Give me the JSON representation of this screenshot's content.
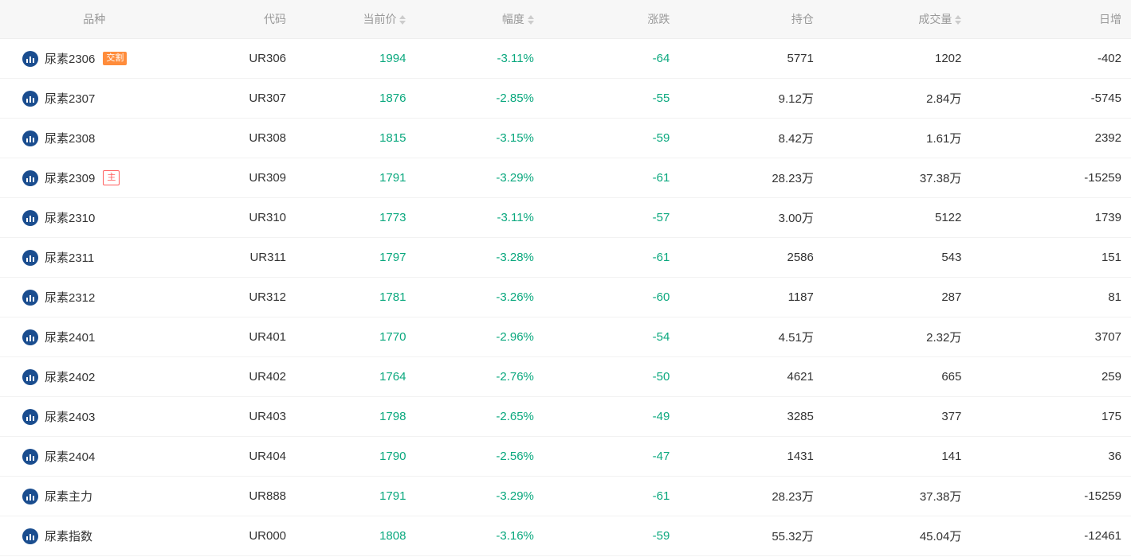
{
  "colors": {
    "header_bg": "#f7f7f7",
    "header_text": "#999999",
    "text": "#333333",
    "neg": "#0aa87e",
    "border": "#f2f2f2",
    "icon_bg": "#1a4d8f",
    "badge_delivery_bg": "#ff8c3b",
    "badge_main_border": "#ff5b5b",
    "sort_arrow": "#cccccc"
  },
  "columns": [
    {
      "key": "name",
      "label": "品种",
      "align": "center",
      "sortable": false
    },
    {
      "key": "code",
      "label": "代码",
      "align": "right",
      "sortable": false
    },
    {
      "key": "price",
      "label": "当前价",
      "align": "right",
      "sortable": true
    },
    {
      "key": "amplitude",
      "label": "幅度",
      "align": "right",
      "sortable": true
    },
    {
      "key": "change",
      "label": "涨跌",
      "align": "right",
      "sortable": false
    },
    {
      "key": "position",
      "label": "持仓",
      "align": "right",
      "sortable": false
    },
    {
      "key": "volume",
      "label": "成交量",
      "align": "right",
      "sortable": true
    },
    {
      "key": "dayinc",
      "label": "日增",
      "align": "right",
      "sortable": false
    }
  ],
  "badges": {
    "delivery": "交割",
    "main": "主"
  },
  "rows": [
    {
      "name": "尿素2306",
      "badge": "delivery",
      "code": "UR306",
      "price": "1994",
      "amplitude": "-3.11%",
      "change": "-64",
      "position": "5771",
      "volume": "1202",
      "dayinc": "-402"
    },
    {
      "name": "尿素2307",
      "badge": null,
      "code": "UR307",
      "price": "1876",
      "amplitude": "-2.85%",
      "change": "-55",
      "position": "9.12万",
      "volume": "2.84万",
      "dayinc": "-5745"
    },
    {
      "name": "尿素2308",
      "badge": null,
      "code": "UR308",
      "price": "1815",
      "amplitude": "-3.15%",
      "change": "-59",
      "position": "8.42万",
      "volume": "1.61万",
      "dayinc": "2392"
    },
    {
      "name": "尿素2309",
      "badge": "main",
      "code": "UR309",
      "price": "1791",
      "amplitude": "-3.29%",
      "change": "-61",
      "position": "28.23万",
      "volume": "37.38万",
      "dayinc": "-15259"
    },
    {
      "name": "尿素2310",
      "badge": null,
      "code": "UR310",
      "price": "1773",
      "amplitude": "-3.11%",
      "change": "-57",
      "position": "3.00万",
      "volume": "5122",
      "dayinc": "1739"
    },
    {
      "name": "尿素2311",
      "badge": null,
      "code": "UR311",
      "price": "1797",
      "amplitude": "-3.28%",
      "change": "-61",
      "position": "2586",
      "volume": "543",
      "dayinc": "151"
    },
    {
      "name": "尿素2312",
      "badge": null,
      "code": "UR312",
      "price": "1781",
      "amplitude": "-3.26%",
      "change": "-60",
      "position": "1187",
      "volume": "287",
      "dayinc": "81"
    },
    {
      "name": "尿素2401",
      "badge": null,
      "code": "UR401",
      "price": "1770",
      "amplitude": "-2.96%",
      "change": "-54",
      "position": "4.51万",
      "volume": "2.32万",
      "dayinc": "3707"
    },
    {
      "name": "尿素2402",
      "badge": null,
      "code": "UR402",
      "price": "1764",
      "amplitude": "-2.76%",
      "change": "-50",
      "position": "4621",
      "volume": "665",
      "dayinc": "259"
    },
    {
      "name": "尿素2403",
      "badge": null,
      "code": "UR403",
      "price": "1798",
      "amplitude": "-2.65%",
      "change": "-49",
      "position": "3285",
      "volume": "377",
      "dayinc": "175"
    },
    {
      "name": "尿素2404",
      "badge": null,
      "code": "UR404",
      "price": "1790",
      "amplitude": "-2.56%",
      "change": "-47",
      "position": "1431",
      "volume": "141",
      "dayinc": "36"
    },
    {
      "name": "尿素主力",
      "badge": null,
      "code": "UR888",
      "price": "1791",
      "amplitude": "-3.29%",
      "change": "-61",
      "position": "28.23万",
      "volume": "37.38万",
      "dayinc": "-15259"
    },
    {
      "name": "尿素指数",
      "badge": null,
      "code": "UR000",
      "price": "1808",
      "amplitude": "-3.16%",
      "change": "-59",
      "position": "55.32万",
      "volume": "45.04万",
      "dayinc": "-12461"
    }
  ]
}
